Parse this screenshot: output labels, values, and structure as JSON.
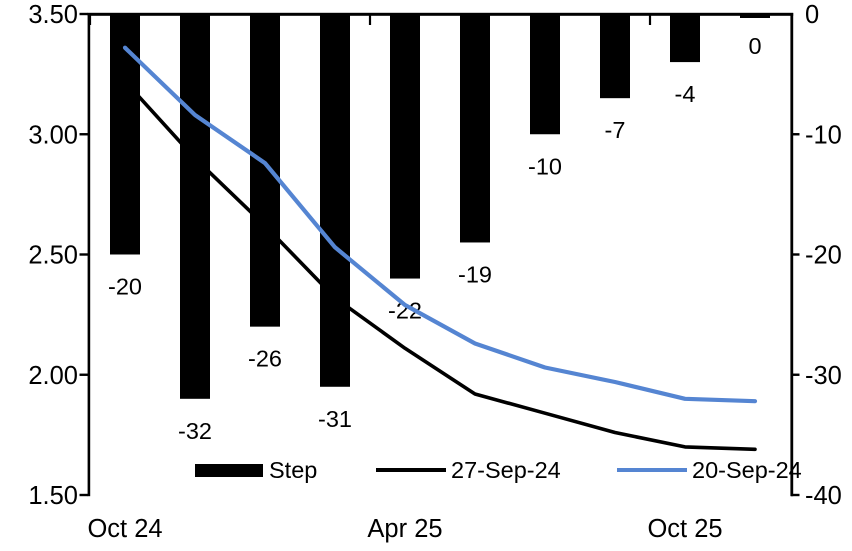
{
  "chart_data": {
    "type": "bar+line",
    "title": "",
    "categories": [
      "Oct 24",
      "",
      "",
      "",
      "Apr 25",
      "",
      "",
      "",
      "Oct 25",
      ""
    ],
    "x_tick_label_indices": [
      0,
      4,
      8
    ],
    "x_axis_tick_boundary_indices": [
      0,
      4,
      8
    ],
    "bar_series": {
      "name": "Step",
      "axis": "right",
      "unit": "bp",
      "color": "#000000",
      "values": [
        -20,
        -32,
        -26,
        -31,
        -22,
        -19,
        -10,
        -7,
        -4,
        0
      ],
      "labels": [
        "-20",
        "-32",
        "-26",
        "-31",
        "-22",
        "-19",
        "-10",
        "-7",
        "-4",
        "0"
      ]
    },
    "line_series": [
      {
        "name": "27-Sep-24",
        "axis": "left",
        "color": "#000000",
        "values": [
          3.22,
          2.9,
          2.62,
          2.32,
          2.11,
          1.92,
          1.84,
          1.76,
          1.7,
          1.69
        ]
      },
      {
        "name": "20-Sep-24",
        "axis": "left",
        "color": "#5585D2",
        "values": [
          3.36,
          3.08,
          2.88,
          2.53,
          2.29,
          2.13,
          2.03,
          1.97,
          1.9,
          1.89
        ]
      }
    ],
    "left_axis": {
      "max": 3.5,
      "min": 1.5,
      "tick_values": [
        3.5,
        3.0,
        2.5,
        2.0,
        1.5
      ],
      "tick_labels": [
        "3.50",
        "3.00",
        "2.50",
        "2.00",
        "1.50"
      ]
    },
    "right_axis": {
      "max": 0,
      "min": -40,
      "tick_values": [
        0,
        -10,
        -20,
        -30,
        -40
      ],
      "tick_labels": [
        "0",
        "-10",
        "-20",
        "-30",
        "-40"
      ]
    },
    "grid": false,
    "legend_position": "bottom-inside",
    "legend": [
      "Step",
      "27-Sep-24",
      "20-Sep-24"
    ]
  },
  "legend": {
    "step": "Step",
    "line27": "27-Sep-24",
    "line20": "20-Sep-24"
  },
  "colors": {
    "bar": "#000000",
    "line_27sep": "#000000",
    "line_20sep": "#5585D2",
    "axis": "#000000",
    "background": "#FFFFFF"
  }
}
